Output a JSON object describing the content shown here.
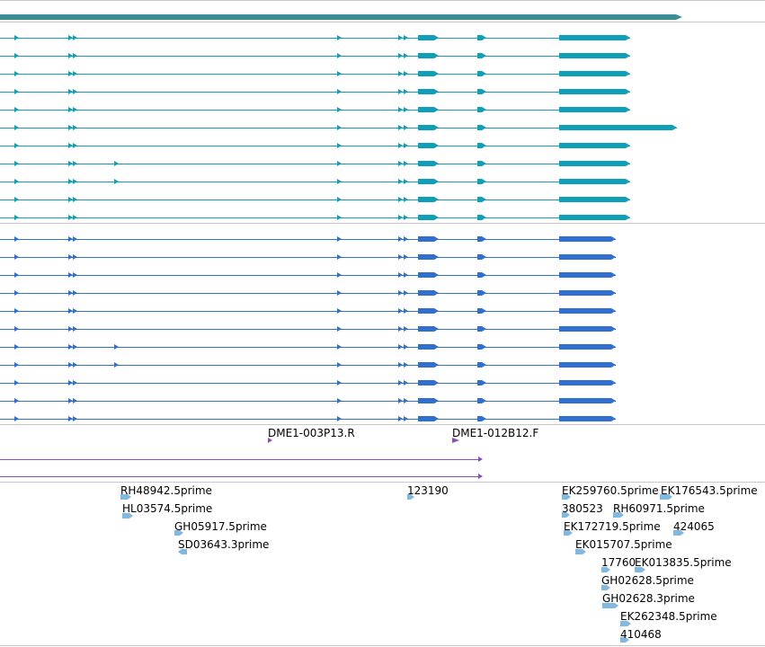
{
  "colors": {
    "top_bar": "#3a8f96",
    "track_a": "#0f9fb8",
    "track_b": "#2f6fd0",
    "primer": "#8a4fb8",
    "est": "#80b8e0",
    "divider": "#c8c8c8"
  },
  "primers": [
    {
      "label": "DME1-003P13.R",
      "dir": "right"
    },
    {
      "label": "DME1-012B12.F",
      "dir": "right"
    }
  ],
  "est_features": [
    {
      "label": "RH48942.5prime",
      "dir": "right"
    },
    {
      "label": "HL03574.5prime",
      "dir": "right"
    },
    {
      "label": "GH05917.5prime",
      "dir": "right"
    },
    {
      "label": "SD03643.3prime",
      "dir": "left"
    },
    {
      "label": "123190",
      "dir": "right"
    },
    {
      "label": "EK259760.5prime",
      "dir": "right"
    },
    {
      "label": "EK176543.5prime",
      "dir": "right"
    },
    {
      "label": "380523",
      "dir": "right"
    },
    {
      "label": "RH60971.5prime",
      "dir": "right"
    },
    {
      "label": "EK172719.5prime",
      "dir": "right"
    },
    {
      "label": "424065",
      "dir": "right"
    },
    {
      "label": "EK015707.5prime",
      "dir": "right"
    },
    {
      "label": "17760",
      "dir": "right"
    },
    {
      "label": "EK013835.5prime",
      "dir": "right"
    },
    {
      "label": "GH02628.5prime",
      "dir": "right"
    },
    {
      "label": "GH02628.3prime",
      "dir": "right"
    },
    {
      "label": "EK262348.5prime",
      "dir": "right"
    },
    {
      "label": "410468",
      "dir": "right"
    }
  ]
}
